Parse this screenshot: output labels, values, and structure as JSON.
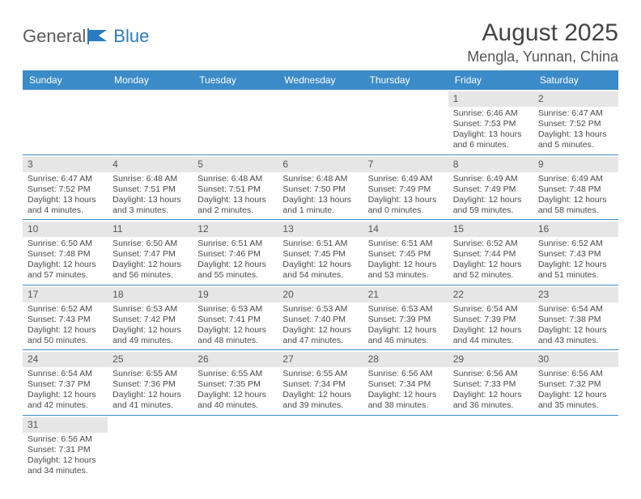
{
  "logo": {
    "text1": "General",
    "text2": "Blue"
  },
  "title": "August 2025",
  "location": "Mengla, Yunnan, China",
  "colors": {
    "header_bg": "#3b8bc8",
    "header_text": "#ffffff",
    "daynum_bg": "#e6e6e6",
    "rule": "#3b8bc8",
    "logo_gray": "#5a5a5a",
    "logo_blue": "#2b7bbf"
  },
  "dow": [
    "Sunday",
    "Monday",
    "Tuesday",
    "Wednesday",
    "Thursday",
    "Friday",
    "Saturday"
  ],
  "weeks": [
    [
      null,
      null,
      null,
      null,
      null,
      {
        "n": "1",
        "sr": "Sunrise: 6:46 AM",
        "ss": "Sunset: 7:53 PM",
        "dl": "Daylight: 13 hours and 6 minutes."
      },
      {
        "n": "2",
        "sr": "Sunrise: 6:47 AM",
        "ss": "Sunset: 7:52 PM",
        "dl": "Daylight: 13 hours and 5 minutes."
      }
    ],
    [
      {
        "n": "3",
        "sr": "Sunrise: 6:47 AM",
        "ss": "Sunset: 7:52 PM",
        "dl": "Daylight: 13 hours and 4 minutes."
      },
      {
        "n": "4",
        "sr": "Sunrise: 6:48 AM",
        "ss": "Sunset: 7:51 PM",
        "dl": "Daylight: 13 hours and 3 minutes."
      },
      {
        "n": "5",
        "sr": "Sunrise: 6:48 AM",
        "ss": "Sunset: 7:51 PM",
        "dl": "Daylight: 13 hours and 2 minutes."
      },
      {
        "n": "6",
        "sr": "Sunrise: 6:48 AM",
        "ss": "Sunset: 7:50 PM",
        "dl": "Daylight: 13 hours and 1 minute."
      },
      {
        "n": "7",
        "sr": "Sunrise: 6:49 AM",
        "ss": "Sunset: 7:49 PM",
        "dl": "Daylight: 13 hours and 0 minutes."
      },
      {
        "n": "8",
        "sr": "Sunrise: 6:49 AM",
        "ss": "Sunset: 7:49 PM",
        "dl": "Daylight: 12 hours and 59 minutes."
      },
      {
        "n": "9",
        "sr": "Sunrise: 6:49 AM",
        "ss": "Sunset: 7:48 PM",
        "dl": "Daylight: 12 hours and 58 minutes."
      }
    ],
    [
      {
        "n": "10",
        "sr": "Sunrise: 6:50 AM",
        "ss": "Sunset: 7:48 PM",
        "dl": "Daylight: 12 hours and 57 minutes."
      },
      {
        "n": "11",
        "sr": "Sunrise: 6:50 AM",
        "ss": "Sunset: 7:47 PM",
        "dl": "Daylight: 12 hours and 56 minutes."
      },
      {
        "n": "12",
        "sr": "Sunrise: 6:51 AM",
        "ss": "Sunset: 7:46 PM",
        "dl": "Daylight: 12 hours and 55 minutes."
      },
      {
        "n": "13",
        "sr": "Sunrise: 6:51 AM",
        "ss": "Sunset: 7:45 PM",
        "dl": "Daylight: 12 hours and 54 minutes."
      },
      {
        "n": "14",
        "sr": "Sunrise: 6:51 AM",
        "ss": "Sunset: 7:45 PM",
        "dl": "Daylight: 12 hours and 53 minutes."
      },
      {
        "n": "15",
        "sr": "Sunrise: 6:52 AM",
        "ss": "Sunset: 7:44 PM",
        "dl": "Daylight: 12 hours and 52 minutes."
      },
      {
        "n": "16",
        "sr": "Sunrise: 6:52 AM",
        "ss": "Sunset: 7:43 PM",
        "dl": "Daylight: 12 hours and 51 minutes."
      }
    ],
    [
      {
        "n": "17",
        "sr": "Sunrise: 6:52 AM",
        "ss": "Sunset: 7:43 PM",
        "dl": "Daylight: 12 hours and 50 minutes."
      },
      {
        "n": "18",
        "sr": "Sunrise: 6:53 AM",
        "ss": "Sunset: 7:42 PM",
        "dl": "Daylight: 12 hours and 49 minutes."
      },
      {
        "n": "19",
        "sr": "Sunrise: 6:53 AM",
        "ss": "Sunset: 7:41 PM",
        "dl": "Daylight: 12 hours and 48 minutes."
      },
      {
        "n": "20",
        "sr": "Sunrise: 6:53 AM",
        "ss": "Sunset: 7:40 PM",
        "dl": "Daylight: 12 hours and 47 minutes."
      },
      {
        "n": "21",
        "sr": "Sunrise: 6:53 AM",
        "ss": "Sunset: 7:39 PM",
        "dl": "Daylight: 12 hours and 46 minutes."
      },
      {
        "n": "22",
        "sr": "Sunrise: 6:54 AM",
        "ss": "Sunset: 7:39 PM",
        "dl": "Daylight: 12 hours and 44 minutes."
      },
      {
        "n": "23",
        "sr": "Sunrise: 6:54 AM",
        "ss": "Sunset: 7:38 PM",
        "dl": "Daylight: 12 hours and 43 minutes."
      }
    ],
    [
      {
        "n": "24",
        "sr": "Sunrise: 6:54 AM",
        "ss": "Sunset: 7:37 PM",
        "dl": "Daylight: 12 hours and 42 minutes."
      },
      {
        "n": "25",
        "sr": "Sunrise: 6:55 AM",
        "ss": "Sunset: 7:36 PM",
        "dl": "Daylight: 12 hours and 41 minutes."
      },
      {
        "n": "26",
        "sr": "Sunrise: 6:55 AM",
        "ss": "Sunset: 7:35 PM",
        "dl": "Daylight: 12 hours and 40 minutes."
      },
      {
        "n": "27",
        "sr": "Sunrise: 6:55 AM",
        "ss": "Sunset: 7:34 PM",
        "dl": "Daylight: 12 hours and 39 minutes."
      },
      {
        "n": "28",
        "sr": "Sunrise: 6:56 AM",
        "ss": "Sunset: 7:34 PM",
        "dl": "Daylight: 12 hours and 38 minutes."
      },
      {
        "n": "29",
        "sr": "Sunrise: 6:56 AM",
        "ss": "Sunset: 7:33 PM",
        "dl": "Daylight: 12 hours and 36 minutes."
      },
      {
        "n": "30",
        "sr": "Sunrise: 6:56 AM",
        "ss": "Sunset: 7:32 PM",
        "dl": "Daylight: 12 hours and 35 minutes."
      }
    ],
    [
      {
        "n": "31",
        "sr": "Sunrise: 6:56 AM",
        "ss": "Sunset: 7:31 PM",
        "dl": "Daylight: 12 hours and 34 minutes."
      },
      null,
      null,
      null,
      null,
      null,
      null
    ]
  ]
}
